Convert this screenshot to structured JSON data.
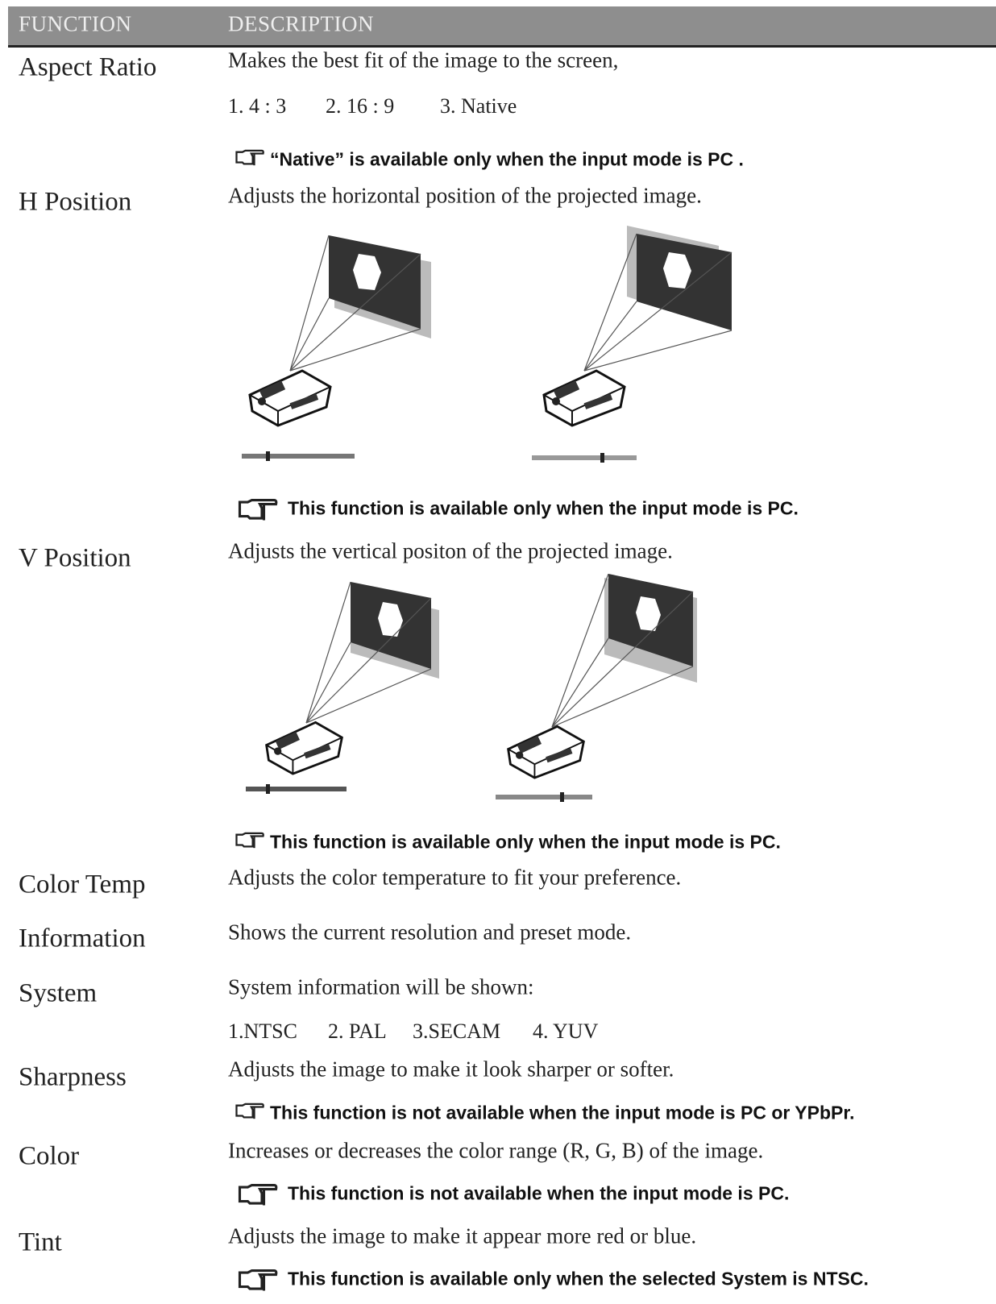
{
  "header": {
    "function": "FUNCTION",
    "description": "DESCRIPTION"
  },
  "rows": [
    {
      "function": "Aspect Ratio",
      "description": "Makes the best fit of the image to the screen,",
      "options": [
        "1. 4 : 3",
        "2. 16 : 9",
        "3. Native"
      ],
      "note": "“Native” is available only when the input mode is PC ."
    },
    {
      "function": "H Position",
      "description": "Adjusts the horizontal position of the projected image.",
      "note": "This function is available only when the input mode is PC."
    },
    {
      "function": "V Position",
      "description": "Adjusts the vertical positon of the projected image.",
      "note": "This function is available only when the input mode is PC."
    },
    {
      "function": "Color Temp",
      "description": "Adjusts the color temperature to fit your preference."
    },
    {
      "function": "Information",
      "description": "Shows the current resolution and preset mode."
    },
    {
      "function": "System",
      "description": "System information will be shown:",
      "options": [
        "1.NTSC",
        "2. PAL",
        "3.SECAM",
        "4. YUV"
      ]
    },
    {
      "function": "Sharpness",
      "description": "Adjusts the image to make it look sharper or softer.",
      "note": "This function is not available when the input mode is PC or YPbPr."
    },
    {
      "function": "Color",
      "description": "Increases or decreases the color range (R, G, B) of the image.",
      "note": "This function is not available when the input mode is PC."
    },
    {
      "function": "Tint",
      "description": "Adjusts the image to make it appear more red or blue.",
      "note": "This function is available only when the selected System is NTSC."
    }
  ]
}
